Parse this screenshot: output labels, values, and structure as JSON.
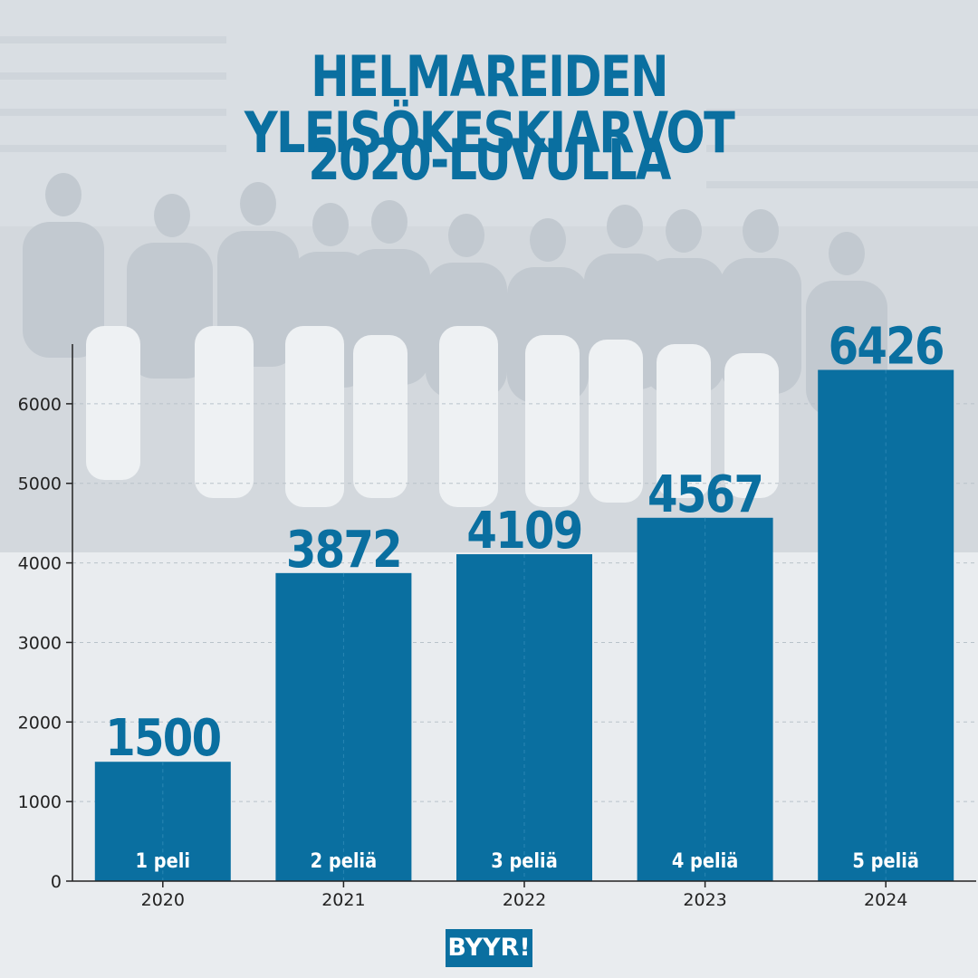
{
  "title": [
    "HELMAREIDEN YLEISÖKESKIARVOT",
    "2020-LUVULLA"
  ],
  "logo_text": "BYYR!",
  "colors": {
    "bar": "#0a6fa0",
    "title": "#0a6fa0",
    "axis": "#222222"
  },
  "chart_data": {
    "type": "bar",
    "categories": [
      "2020",
      "2021",
      "2022",
      "2023",
      "2024"
    ],
    "values": [
      1500,
      3872,
      4109,
      4567,
      6426
    ],
    "value_labels": [
      "1500",
      "3872",
      "4109",
      "4567",
      "6426"
    ],
    "bar_labels": [
      "1 peli",
      "2 peliä",
      "3 peliä",
      "4 peliä",
      "5 peliä"
    ],
    "yticks": [
      0,
      1000,
      2000,
      3000,
      4000,
      5000,
      6000
    ],
    "ylim": [
      0,
      6750
    ],
    "grid": true,
    "xlabel": "",
    "ylabel": ""
  }
}
